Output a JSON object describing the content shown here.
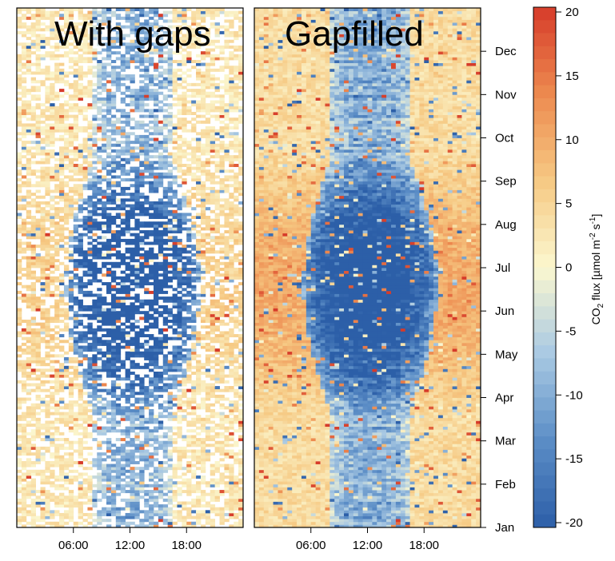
{
  "chart_data": {
    "type": "heatmap",
    "panels": [
      {
        "title": "With gaps",
        "gaps": true
      },
      {
        "title": "Gapfilled",
        "gaps": false
      }
    ],
    "x_ticks": [
      "06:00",
      "12:00",
      "18:00"
    ],
    "x_tick_hours": [
      6,
      12,
      18
    ],
    "x_range_hours": [
      0,
      24
    ],
    "y_ticks": [
      "Jan",
      "Feb",
      "Mar",
      "Apr",
      "May",
      "Jun",
      "Jul",
      "Aug",
      "Sep",
      "Oct",
      "Nov",
      "Dec"
    ],
    "y_range_months": [
      0,
      12
    ],
    "colorbar": {
      "label_parts": [
        "CO",
        "2",
        " flux [µmol m",
        "-2",
        " s",
        "-1",
        "]"
      ],
      "range": [
        -20,
        20
      ],
      "ticks": [
        "-20",
        "-15",
        "-10",
        "-5",
        "0",
        "5",
        "10",
        "15",
        "20"
      ],
      "tick_values": [
        -20,
        -15,
        -10,
        -5,
        0,
        5,
        10,
        15,
        20
      ],
      "colors": [
        "#2c5fa8",
        "#5b8dc6",
        "#a9c9e3",
        "#fbf7cf",
        "#f6c983",
        "#ed8a4f",
        "#d63b2a"
      ]
    }
  }
}
